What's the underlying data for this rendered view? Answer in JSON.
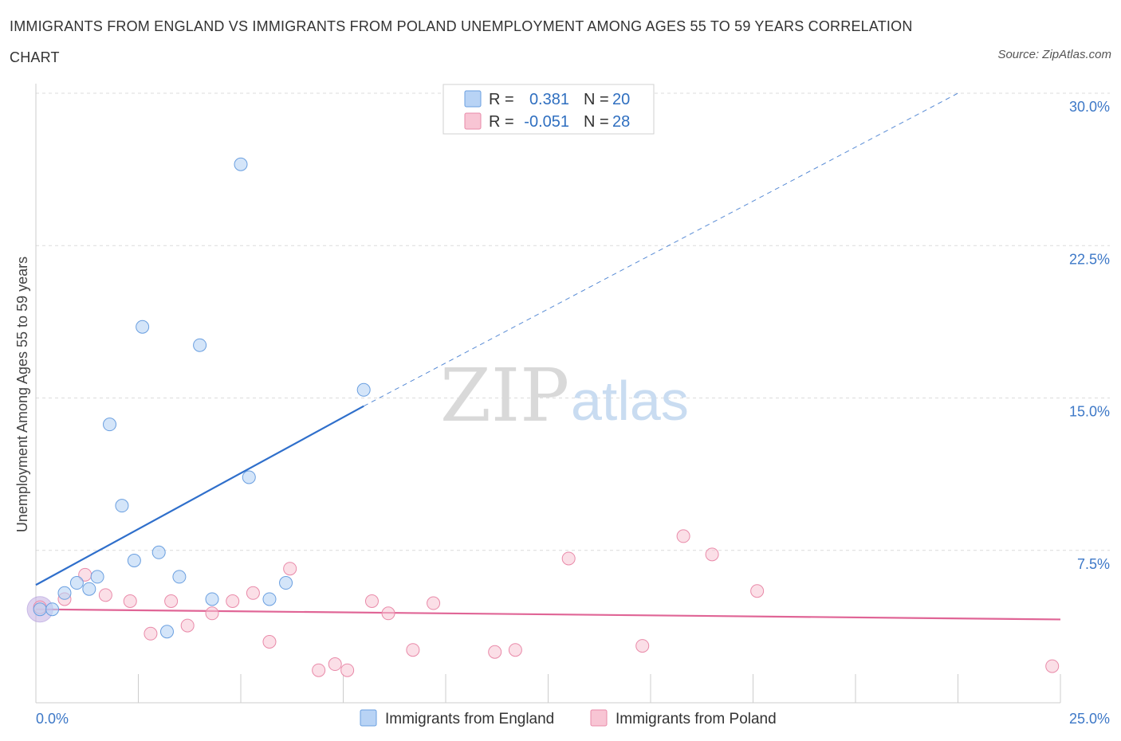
{
  "title": "IMMIGRANTS FROM ENGLAND VS IMMIGRANTS FROM POLAND UNEMPLOYMENT AMONG AGES 55 TO 59 YEARS CORRELATION CHART",
  "source": "Source: ZipAtlas.com",
  "watermark": {
    "zip": "ZIP",
    "atlas": "atlas"
  },
  "colors": {
    "england_fill": "#b8d3f5",
    "england_stroke": "#6a9fe0",
    "england_line": "#2f6fcb",
    "poland_fill": "#f8c5d4",
    "poland_stroke": "#e98aa9",
    "poland_line": "#e06596",
    "grid": "#dcdcdc",
    "axis_text": "#3d78c7"
  },
  "legend": {
    "rows": [
      {
        "r_label": "R =",
        "r_value": "0.381",
        "n_label": "N =",
        "n_value": "20"
      },
      {
        "r_label": "R =",
        "r_value": "-0.051",
        "n_label": "N =",
        "n_value": "28"
      }
    ],
    "bottom": [
      "Immigrants from England",
      "Immigrants from Poland"
    ]
  },
  "chart_data": {
    "type": "scatter",
    "title": "IMMIGRANTS FROM ENGLAND VS IMMIGRANTS FROM POLAND UNEMPLOYMENT AMONG AGES 55 TO 59 YEARS CORRELATION CHART",
    "xlabel": "",
    "ylabel": "Unemployment Among Ages 55 to 59 years",
    "xlim": [
      0,
      25
    ],
    "ylim": [
      0,
      30
    ],
    "x_tick_labels": [
      "0.0%",
      "25.0%"
    ],
    "y_ticks": [
      7.5,
      15,
      22.5,
      30
    ],
    "y_tick_labels": [
      "7.5%",
      "15.0%",
      "22.5%",
      "30.0%"
    ],
    "grid": true,
    "legend_position": "top-center",
    "series": [
      {
        "name": "Immigrants from England",
        "points": [
          {
            "x": 0.1,
            "y": 4.6
          },
          {
            "x": 0.4,
            "y": 4.6
          },
          {
            "x": 0.7,
            "y": 5.4
          },
          {
            "x": 1.0,
            "y": 5.9
          },
          {
            "x": 1.3,
            "y": 5.6
          },
          {
            "x": 1.5,
            "y": 6.2
          },
          {
            "x": 1.8,
            "y": 13.7
          },
          {
            "x": 2.1,
            "y": 9.7
          },
          {
            "x": 2.4,
            "y": 7.0
          },
          {
            "x": 2.6,
            "y": 18.5
          },
          {
            "x": 3.0,
            "y": 7.4
          },
          {
            "x": 3.2,
            "y": 3.5
          },
          {
            "x": 3.5,
            "y": 6.2
          },
          {
            "x": 4.0,
            "y": 17.6
          },
          {
            "x": 4.3,
            "y": 5.1
          },
          {
            "x": 5.0,
            "y": 26.5
          },
          {
            "x": 5.2,
            "y": 11.1
          },
          {
            "x": 5.7,
            "y": 5.1
          },
          {
            "x": 6.1,
            "y": 5.9
          },
          {
            "x": 8.0,
            "y": 15.4
          }
        ],
        "trend": {
          "x": [
            0,
            8.0
          ],
          "y": [
            5.8,
            14.6
          ],
          "dashed_extension_to": [
            22.5,
            30.0
          ]
        }
      },
      {
        "name": "Immigrants from Poland",
        "points": [
          {
            "x": 0.1,
            "y": 4.7
          },
          {
            "x": 0.7,
            "y": 5.1
          },
          {
            "x": 1.2,
            "y": 6.3
          },
          {
            "x": 1.7,
            "y": 5.3
          },
          {
            "x": 2.3,
            "y": 5.0
          },
          {
            "x": 2.8,
            "y": 3.4
          },
          {
            "x": 3.3,
            "y": 5.0
          },
          {
            "x": 3.7,
            "y": 3.8
          },
          {
            "x": 4.3,
            "y": 4.4
          },
          {
            "x": 4.8,
            "y": 5.0
          },
          {
            "x": 5.3,
            "y": 5.4
          },
          {
            "x": 5.7,
            "y": 3.0
          },
          {
            "x": 6.2,
            "y": 6.6
          },
          {
            "x": 6.9,
            "y": 1.6
          },
          {
            "x": 7.3,
            "y": 1.9
          },
          {
            "x": 7.6,
            "y": 1.6
          },
          {
            "x": 8.2,
            "y": 5.0
          },
          {
            "x": 8.6,
            "y": 4.4
          },
          {
            "x": 9.2,
            "y": 2.6
          },
          {
            "x": 9.7,
            "y": 4.9
          },
          {
            "x": 11.2,
            "y": 2.5
          },
          {
            "x": 11.7,
            "y": 2.6
          },
          {
            "x": 13.0,
            "y": 7.1
          },
          {
            "x": 14.8,
            "y": 2.8
          },
          {
            "x": 15.8,
            "y": 8.2
          },
          {
            "x": 16.5,
            "y": 7.3
          },
          {
            "x": 17.6,
            "y": 5.5
          },
          {
            "x": 24.8,
            "y": 1.8
          }
        ],
        "trend": {
          "x": [
            0,
            25.0
          ],
          "y": [
            4.6,
            4.1
          ]
        }
      }
    ]
  }
}
